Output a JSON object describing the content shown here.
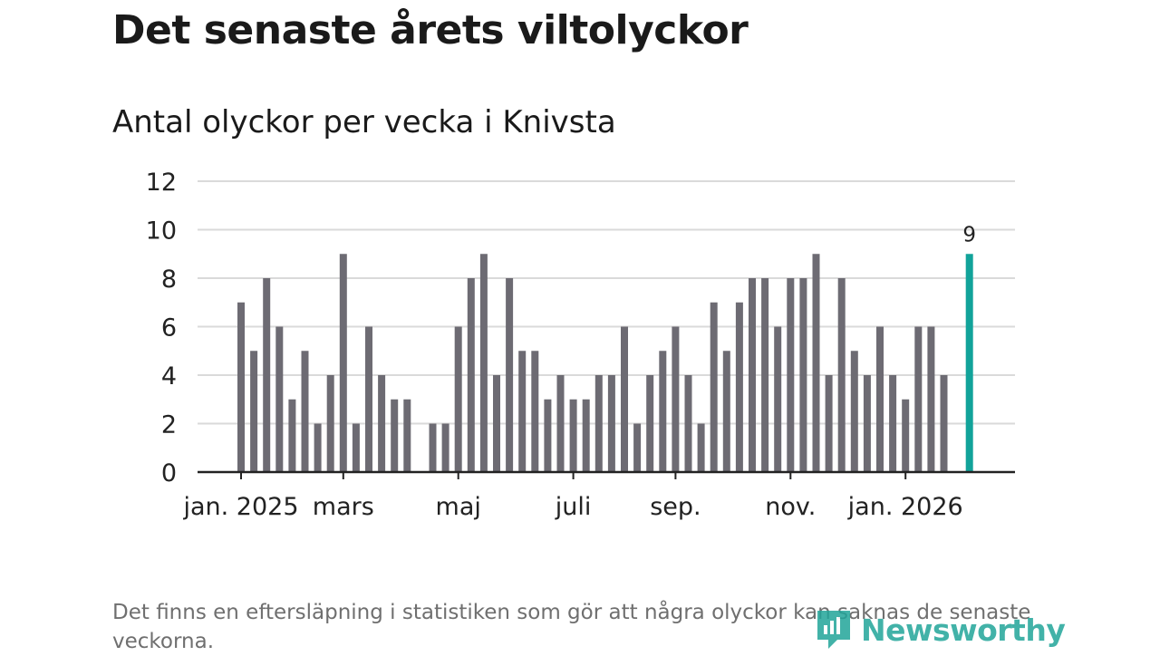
{
  "title": "Det senaste årets viltolyckor",
  "subtitle": "Antal olyckor per vecka i Knivsta",
  "footnote": "Det finns en eftersläpning i statistiken som gör att några olyckor kan saknas de senaste veckorna.",
  "brand": {
    "name": "Newsworthy",
    "icon": "newsworthy-logo-icon",
    "color": "#22a59a"
  },
  "colors": {
    "bar": "#6d6b73",
    "highlight": "#12a39a",
    "grid": "#dadada",
    "axis": "#222222"
  },
  "chart_data": {
    "type": "bar",
    "title": "Antal olyckor per vecka i Knivsta",
    "ylim": [
      0,
      12
    ],
    "yticks": [
      0,
      2,
      4,
      6,
      8,
      10,
      12
    ],
    "grid": true,
    "x_tick_labels": [
      "jan. 2025",
      "mars",
      "maj",
      "juli",
      "sep.",
      "nov.",
      "jan. 2026"
    ],
    "x_tick_week_index": [
      0,
      8,
      17,
      26,
      34,
      43,
      52
    ],
    "values": [
      7,
      5,
      8,
      6,
      3,
      5,
      2,
      4,
      9,
      2,
      6,
      4,
      3,
      3,
      0,
      2,
      2,
      6,
      8,
      9,
      4,
      8,
      5,
      5,
      3,
      4,
      3,
      3,
      4,
      4,
      6,
      2,
      4,
      5,
      6,
      4,
      2,
      7,
      5,
      7,
      8,
      8,
      6,
      8,
      8,
      9,
      4,
      8,
      5,
      4,
      6,
      4,
      3,
      6,
      6,
      4,
      0,
      9
    ],
    "highlight_index": 57,
    "highlight_label": "9"
  }
}
